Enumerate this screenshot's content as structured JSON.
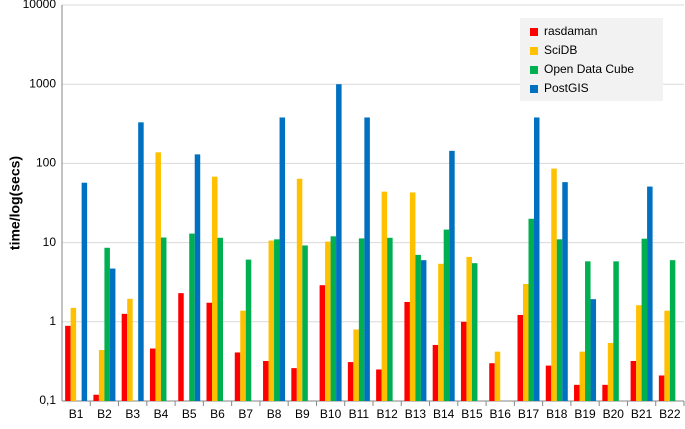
{
  "chart_data": {
    "type": "bar",
    "y_label": "time/log(secs)",
    "log_y": true,
    "grid": true,
    "legend": "upper right",
    "categories": [
      "B1",
      "B2",
      "B3",
      "B4",
      "B5",
      "B6",
      "B7",
      "B8",
      "B9",
      "B10",
      "B11",
      "B12",
      "B13",
      "B14",
      "B15",
      "B16",
      "B17",
      "B18",
      "B19",
      "B20",
      "B21",
      "B22"
    ],
    "series": [
      {
        "name": "rasdaman",
        "color": "#ff0000",
        "values": [
          0.89,
          0.12,
          1.26,
          0.46,
          2.3,
          1.74,
          0.41,
          0.32,
          0.26,
          2.9,
          0.31,
          0.25,
          1.78,
          0.51,
          1.0,
          0.3,
          1.22,
          0.28,
          0.16,
          0.16,
          0.32,
          0.21
        ]
      },
      {
        "name": "SciDB",
        "color": "#ffc000",
        "values": [
          1.5,
          0.44,
          1.95,
          138,
          null,
          68,
          1.38,
          10.6,
          64,
          10.3,
          0.8,
          44,
          43,
          5.4,
          6.6,
          0.42,
          3,
          86,
          0.42,
          0.54,
          1.62,
          1.38
        ]
      },
      {
        "name": "Open Data Cube",
        "color": "#00b050",
        "values": [
          null,
          8.6,
          null,
          11.6,
          13,
          11.5,
          6.1,
          11,
          9.2,
          12,
          11.3,
          11.5,
          7,
          14.6,
          5.5,
          null,
          20,
          11,
          5.8,
          5.8,
          11.2,
          6
        ]
      },
      {
        "name": "PostGIS",
        "color": "#0070c0",
        "values": [
          57,
          4.7,
          330,
          null,
          130,
          null,
          null,
          380,
          null,
          1000,
          380,
          null,
          6,
          144,
          null,
          null,
          380,
          58,
          1.93,
          null,
          51,
          null
        ]
      }
    ],
    "ylim": [
      0.1,
      10000
    ],
    "yticks": [
      {
        "value": 0.1,
        "label": "0,1"
      },
      1,
      10,
      100,
      1000,
      10000
    ]
  }
}
